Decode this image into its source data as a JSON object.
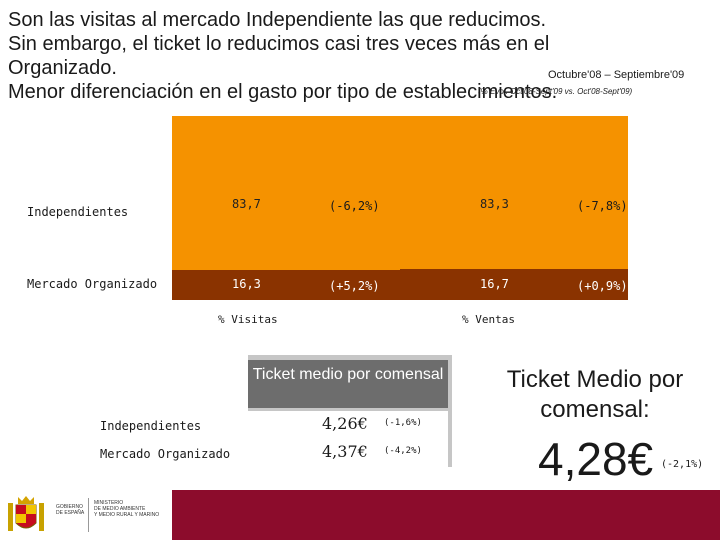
{
  "headline": {
    "line1": "Son las visitas al mercado Independiente las que reducimos.",
    "line2": "Sin embargo, el ticket lo reducimos casi tres veces más en el",
    "line3": "Organizado.",
    "line4": "Menor diferenciación en el gasto por tipo de establecimientos."
  },
  "period": "Octubre'08 – Septiembre'09",
  "subnote": "(% Evol. Oct'08-Sept'09 vs. Oct'08-Sept'09)",
  "rows": {
    "independientes": "Independientes",
    "organizado": "Mercado Organizado"
  },
  "colors": {
    "independientes_bar": "#f59200",
    "organizado_bar": "#8a3300",
    "ticket_header": "#6d6d6d",
    "footer": "#8c0c2c"
  },
  "chart_data": {
    "type": "bar",
    "stacked": true,
    "percent": true,
    "categories": [
      "% Visitas",
      "% Ventas"
    ],
    "series": [
      {
        "name": "Independientes",
        "values": [
          83.7,
          83.3
        ],
        "labels": [
          "83,7",
          "83,3"
        ],
        "variation": [
          "(-6,2%)",
          "(-7,8%)"
        ]
      },
      {
        "name": "Mercado Organizado",
        "values": [
          16.3,
          16.7
        ],
        "labels": [
          "16,3",
          "16,7"
        ],
        "variation": [
          "(+5,2%)",
          "(+0,9%)"
        ]
      }
    ],
    "ylim": [
      0,
      100
    ]
  },
  "ticket": {
    "header": "Ticket medio por comensal",
    "rows": [
      {
        "label": "Independientes",
        "value": "4,26€",
        "variation": "(-1,6%)"
      },
      {
        "label": "Mercado Organizado",
        "value": "4,37€",
        "variation": "(-4,2%)"
      }
    ]
  },
  "summary": {
    "title": "Ticket Medio por comensal:",
    "value": "4,28€",
    "variation": "(-2,1%)"
  },
  "footer": {
    "ministry_lines": [
      "GOBIERNO",
      "DE ESPAÑA"
    ],
    "department_lines": [
      "MINISTERIO",
      "DE MEDIO AMBIENTE",
      "Y MEDIO RURAL Y MARINO"
    ],
    "logo_icon": "coat-of-arms-icon"
  }
}
